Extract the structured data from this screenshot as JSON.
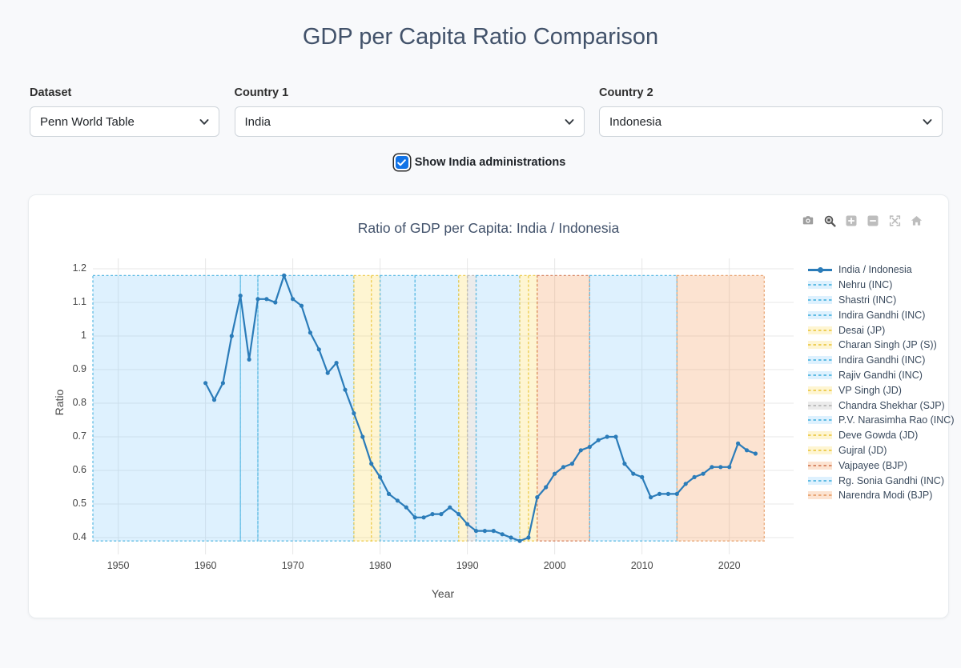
{
  "page": {
    "title": "GDP per Capita Ratio Comparison"
  },
  "controls": {
    "dataset_label": "Dataset",
    "dataset_value": "Penn World Table",
    "country1_label": "Country 1",
    "country1_value": "India",
    "country2_label": "Country 2",
    "country2_value": "Indonesia",
    "show_admins_label": "Show India administrations",
    "show_admins_checked": true
  },
  "modebar": {
    "icons": [
      "camera",
      "zoom",
      "zoom-in",
      "zoom-out",
      "autoscale",
      "home"
    ],
    "active_icon": "zoom",
    "color_inactive": "#bdbdbd",
    "color_camera": "#9e9e9e",
    "color_active": "#555555"
  },
  "chart_data": {
    "type": "line",
    "title": "Ratio of GDP per Capita: India / Indonesia",
    "xlabel": "Year",
    "ylabel": "Ratio",
    "xlim": [
      1947.1,
      2027.37
    ],
    "ylim": [
      0.35,
      1.231
    ],
    "x_ticks": [
      1950,
      1960,
      1970,
      1980,
      1990,
      2000,
      2010,
      2020
    ],
    "y_ticks": [
      0.4,
      0.5,
      0.6,
      0.7,
      0.8,
      0.9,
      1,
      1.1,
      1.2
    ],
    "grid": true,
    "gridcolor": "#e7e7e7",
    "legend_position": "right",
    "series": [
      {
        "name": "India / Indonesia",
        "color": "#2b7cb9",
        "x": [
          1960,
          1961,
          1962,
          1963,
          1964,
          1965,
          1966,
          1967,
          1968,
          1969,
          1970,
          1971,
          1972,
          1973,
          1974,
          1975,
          1976,
          1977,
          1978,
          1979,
          1980,
          1981,
          1982,
          1983,
          1984,
          1985,
          1986,
          1987,
          1988,
          1989,
          1990,
          1991,
          1992,
          1993,
          1994,
          1995,
          1996,
          1997,
          1998,
          1999,
          2000,
          2001,
          2002,
          2003,
          2004,
          2005,
          2006,
          2007,
          2008,
          2009,
          2010,
          2011,
          2012,
          2013,
          2014,
          2015,
          2016,
          2017,
          2018,
          2019,
          2020,
          2021,
          2022,
          2023
        ],
        "y": [
          0.86,
          0.81,
          0.86,
          1.0,
          1.12,
          0.93,
          1.11,
          1.11,
          1.1,
          1.18,
          1.11,
          1.09,
          1.01,
          0.96,
          0.89,
          0.92,
          0.84,
          0.77,
          0.7,
          0.62,
          0.58,
          0.53,
          0.51,
          0.49,
          0.46,
          0.46,
          0.47,
          0.47,
          0.49,
          0.47,
          0.44,
          0.42,
          0.42,
          0.42,
          0.41,
          0.4,
          0.39,
          0.4,
          0.52,
          0.55,
          0.59,
          0.61,
          0.62,
          0.66,
          0.67,
          0.69,
          0.7,
          0.7,
          0.62,
          0.59,
          0.58,
          0.52,
          0.53,
          0.53,
          0.53,
          0.56,
          0.58,
          0.59,
          0.61,
          0.61,
          0.61,
          0.68,
          0.66,
          0.65
        ]
      }
    ],
    "admin_band_y": [
      0.39,
      1.18
    ],
    "party_styles": {
      "INC": {
        "fill": "rgba(135,206,250,0.28)",
        "border": "#62bde4"
      },
      "JP": {
        "fill": "rgba(250,218,94,0.28)",
        "border": "#eecf5a"
      },
      "JD": {
        "fill": "rgba(250,218,94,0.28)",
        "border": "#eecf5a"
      },
      "SJP": {
        "fill": "rgba(175,175,175,0.25)",
        "border": "#bdbdbd"
      },
      "BJP": {
        "fill": "rgba(243,156,89,0.28)",
        "border": "#e9a878"
      }
    },
    "regions": [
      {
        "label": "Nehru (INC)",
        "party": "INC",
        "start": 1947,
        "end": 1964
      },
      {
        "label": "Shastri (INC)",
        "party": "INC",
        "start": 1964,
        "end": 1966
      },
      {
        "label": "Indira Gandhi (INC)",
        "party": "INC",
        "start": 1966,
        "end": 1977
      },
      {
        "label": "Desai (JP)",
        "party": "JP",
        "start": 1977,
        "end": 1979
      },
      {
        "label": "Charan Singh (JP (S))",
        "party": "JP",
        "start": 1979,
        "end": 1980
      },
      {
        "label": "Indira Gandhi (INC)",
        "party": "INC",
        "start": 1980,
        "end": 1984
      },
      {
        "label": "Rajiv Gandhi (INC)",
        "party": "INC",
        "start": 1984,
        "end": 1989
      },
      {
        "label": "VP Singh (JD)",
        "party": "JD",
        "start": 1989,
        "end": 1990
      },
      {
        "label": "Chandra Shekhar (SJP)",
        "party": "SJP",
        "start": 1990,
        "end": 1991
      },
      {
        "label": "P.V. Narasimha Rao (INC)",
        "party": "INC",
        "start": 1991,
        "end": 1996
      },
      {
        "label": "Deve Gowda (JD)",
        "party": "JD",
        "start": 1996,
        "end": 1997
      },
      {
        "label": "Gujral (JD)",
        "party": "JD",
        "start": 1997,
        "end": 1998
      },
      {
        "label": "Vajpayee (BJP)",
        "party": "BJP",
        "start": 1998,
        "end": 2004,
        "border": "#d98c6b"
      },
      {
        "label": "Rg. Sonia Gandhi (INC)",
        "party": "INC",
        "start": 2004,
        "end": 2014
      },
      {
        "label": "Narendra Modi (BJP)",
        "party": "BJP",
        "start": 2014,
        "end": 2024
      }
    ]
  }
}
